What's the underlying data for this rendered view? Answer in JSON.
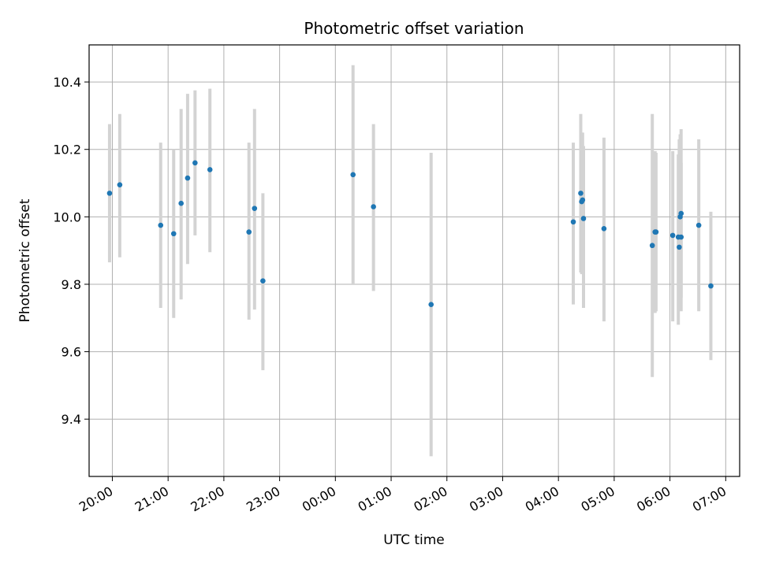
{
  "chart_data": {
    "type": "scatter",
    "title": "Photometric offset variation",
    "xlabel": "UTC time",
    "ylabel": "Photometric offset",
    "xlim": [
      "19:35",
      "07:15"
    ],
    "ylim": [
      9.23,
      10.51
    ],
    "x_ticks": [
      "20:00",
      "21:00",
      "22:00",
      "23:00",
      "00:00",
      "01:00",
      "02:00",
      "03:00",
      "04:00",
      "05:00",
      "06:00",
      "07:00"
    ],
    "y_ticks": [
      "9.4",
      "9.6",
      "9.8",
      "10.0",
      "10.2",
      "10.4"
    ],
    "grid": true,
    "colors": {
      "point": "#1f77b4",
      "errorbar": "#d3d3d3",
      "grid": "#b0b0b0"
    },
    "points": [
      {
        "x": "19:57",
        "y": 10.07,
        "ylow": 9.865,
        "yhigh": 10.275
      },
      {
        "x": "20:08",
        "y": 10.095,
        "ylow": 9.88,
        "yhigh": 10.305
      },
      {
        "x": "20:52",
        "y": 9.975,
        "ylow": 9.73,
        "yhigh": 10.22
      },
      {
        "x": "21:06",
        "y": 9.95,
        "ylow": 9.7,
        "yhigh": 10.2
      },
      {
        "x": "21:14",
        "y": 10.04,
        "ylow": 9.755,
        "yhigh": 10.32
      },
      {
        "x": "21:21",
        "y": 10.115,
        "ylow": 9.86,
        "yhigh": 10.365
      },
      {
        "x": "21:29",
        "y": 10.16,
        "ylow": 9.945,
        "yhigh": 10.375
      },
      {
        "x": "21:45",
        "y": 10.14,
        "ylow": 9.895,
        "yhigh": 10.38
      },
      {
        "x": "22:27",
        "y": 9.955,
        "ylow": 9.695,
        "yhigh": 10.22
      },
      {
        "x": "22:33",
        "y": 10.025,
        "ylow": 9.725,
        "yhigh": 10.32
      },
      {
        "x": "22:42",
        "y": 9.81,
        "ylow": 9.545,
        "yhigh": 10.07
      },
      {
        "x": "00:19",
        "y": 10.125,
        "ylow": 9.8,
        "yhigh": 10.45
      },
      {
        "x": "00:41",
        "y": 10.03,
        "ylow": 9.78,
        "yhigh": 10.275
      },
      {
        "x": "01:43",
        "y": 9.74,
        "ylow": 9.29,
        "yhigh": 10.19
      },
      {
        "x": "04:16",
        "y": 9.985,
        "ylow": 9.74,
        "yhigh": 10.22
      },
      {
        "x": "04:24",
        "y": 10.07,
        "ylow": 9.835,
        "yhigh": 10.305
      },
      {
        "x": "04:25",
        "y": 10.045,
        "ylow": 9.83,
        "yhigh": 10.25
      },
      {
        "x": "04:26",
        "y": 10.05,
        "ylow": 9.835,
        "yhigh": 10.25
      },
      {
        "x": "04:27",
        "y": 9.995,
        "ylow": 9.73,
        "yhigh": 10.21
      },
      {
        "x": "04:49",
        "y": 9.965,
        "ylow": 9.69,
        "yhigh": 10.235
      },
      {
        "x": "05:41",
        "y": 9.915,
        "ylow": 9.525,
        "yhigh": 10.305
      },
      {
        "x": "05:44",
        "y": 9.955,
        "ylow": 9.715,
        "yhigh": 10.195
      },
      {
        "x": "05:45",
        "y": 9.955,
        "ylow": 9.72,
        "yhigh": 10.19
      },
      {
        "x": "06:03",
        "y": 9.945,
        "ylow": 9.69,
        "yhigh": 10.195
      },
      {
        "x": "06:09",
        "y": 9.94,
        "ylow": 9.68,
        "yhigh": 10.185
      },
      {
        "x": "06:10",
        "y": 9.91,
        "ylow": 9.755,
        "yhigh": 10.23
      },
      {
        "x": "06:11",
        "y": 10.0,
        "ylow": 9.765,
        "yhigh": 10.245
      },
      {
        "x": "06:12",
        "y": 10.01,
        "ylow": 9.76,
        "yhigh": 10.26
      },
      {
        "x": "06:12",
        "y": 9.94,
        "ylow": 9.72,
        "yhigh": 10.16
      },
      {
        "x": "06:31",
        "y": 9.975,
        "ylow": 9.72,
        "yhigh": 10.23
      },
      {
        "x": "06:44",
        "y": 9.795,
        "ylow": 9.575,
        "yhigh": 10.015
      }
    ]
  }
}
